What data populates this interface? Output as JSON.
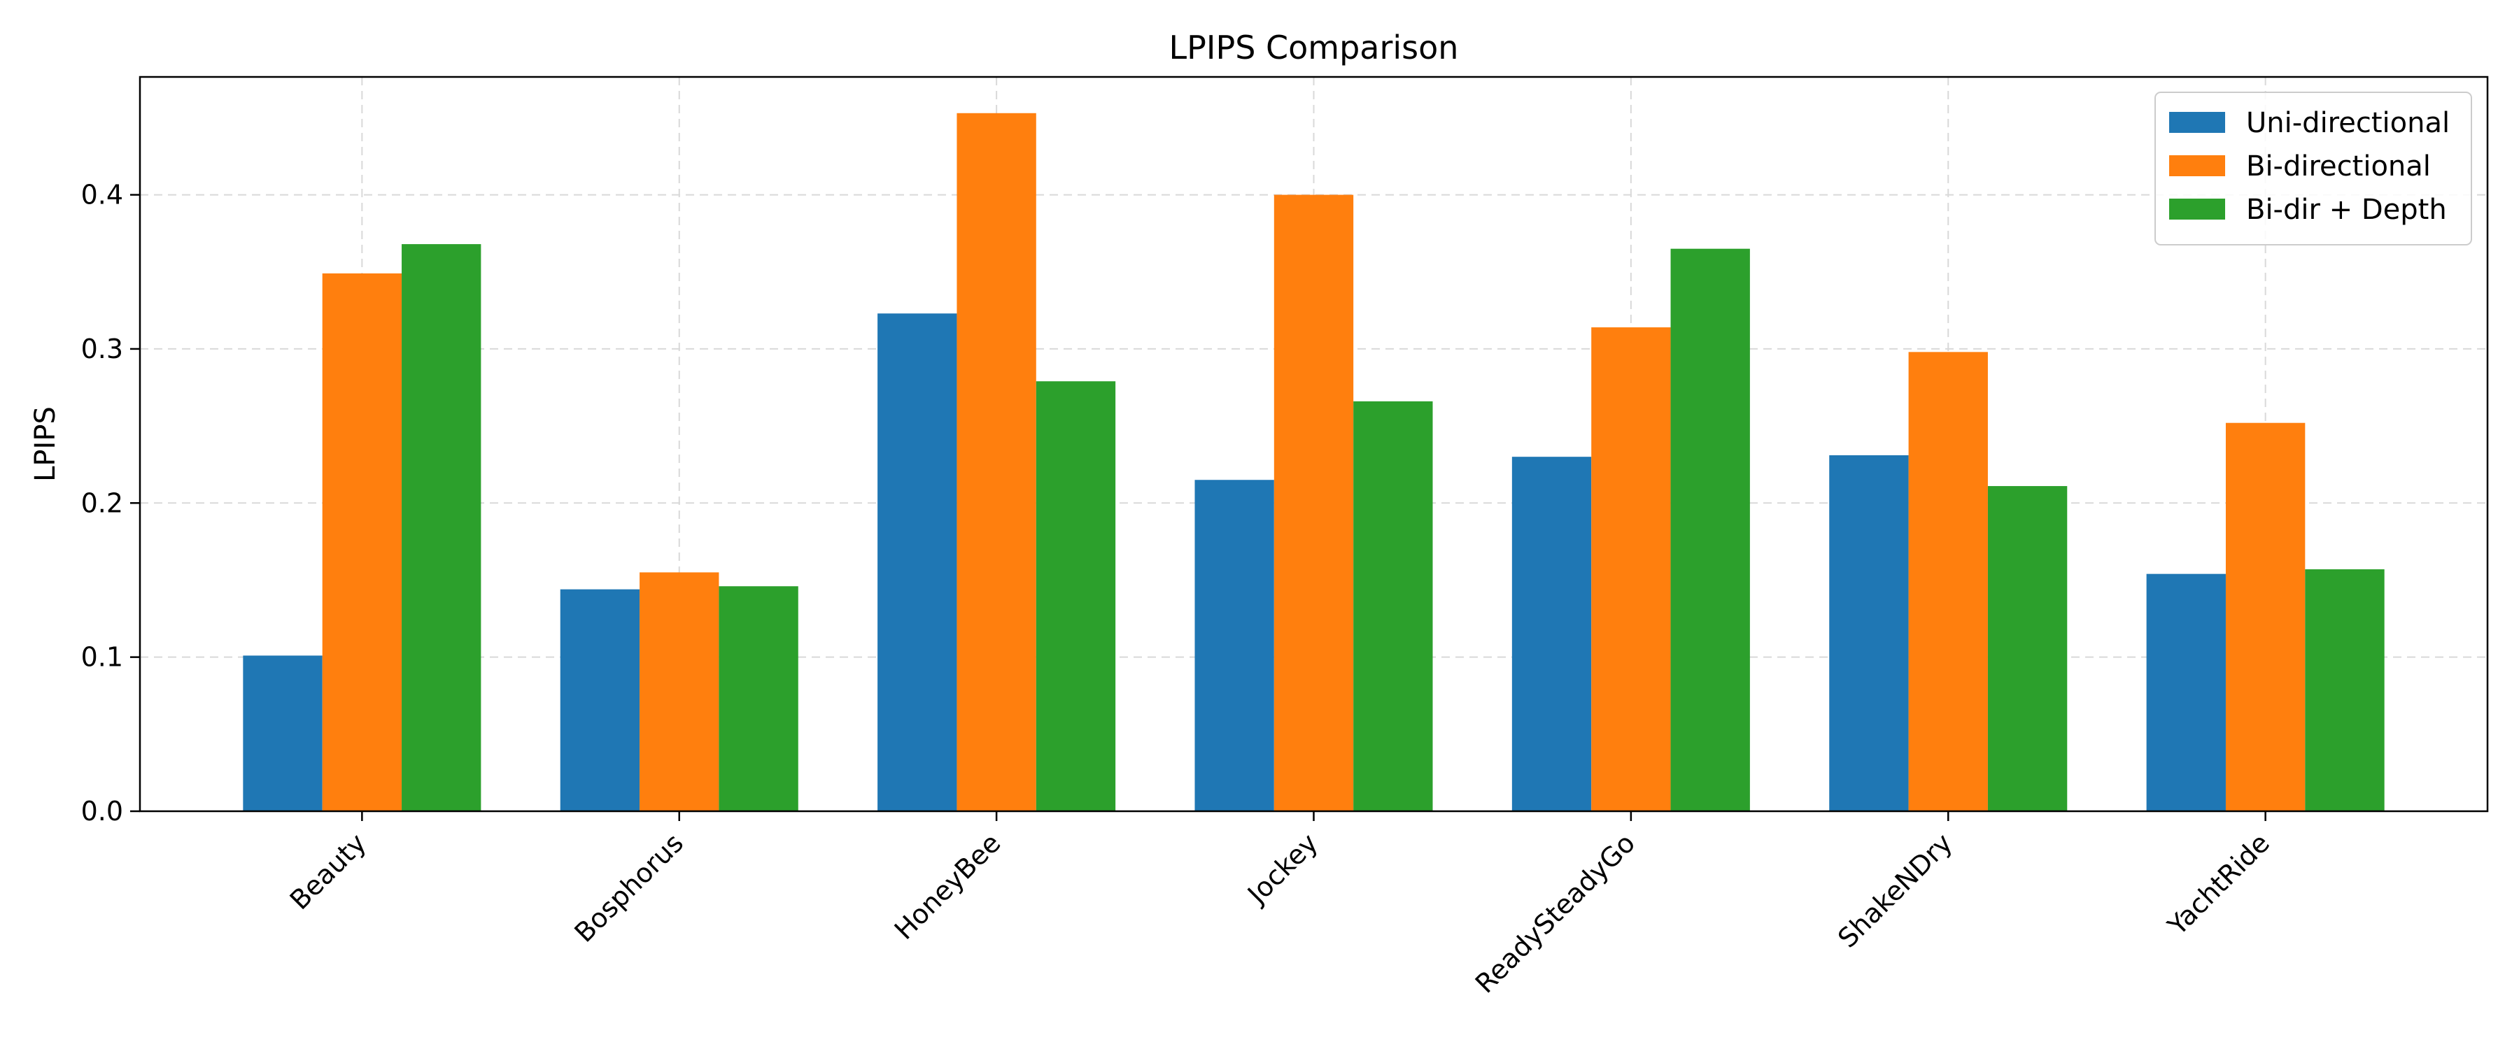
{
  "chart_data": {
    "type": "bar",
    "title": "LPIPS Comparison",
    "xlabel": "",
    "ylabel": "LPIPS",
    "ylim": [
      0,
      0.4765
    ],
    "yticks": [
      0.0,
      0.1,
      0.2,
      0.3,
      0.4
    ],
    "ytick_labels": [
      "0.0",
      "0.1",
      "0.2",
      "0.3",
      "0.4"
    ],
    "grid": true,
    "legend_position": "top-right",
    "categories": [
      "Beauty",
      "Bosphorus",
      "HoneyBee",
      "Jockey",
      "ReadySteadyGo",
      "ShakeNDry",
      "YachtRide"
    ],
    "series": [
      {
        "name": "Uni-directional",
        "color": "#1f77b4",
        "values": [
          0.101,
          0.144,
          0.323,
          0.215,
          0.23,
          0.231,
          0.154
        ]
      },
      {
        "name": "Bi-directional",
        "color": "#ff7f0e",
        "values": [
          0.349,
          0.155,
          0.453,
          0.4,
          0.314,
          0.298,
          0.252
        ]
      },
      {
        "name": "Bi-dir + Depth",
        "color": "#2ca02c",
        "values": [
          0.368,
          0.146,
          0.279,
          0.266,
          0.365,
          0.211,
          0.157
        ]
      }
    ]
  }
}
